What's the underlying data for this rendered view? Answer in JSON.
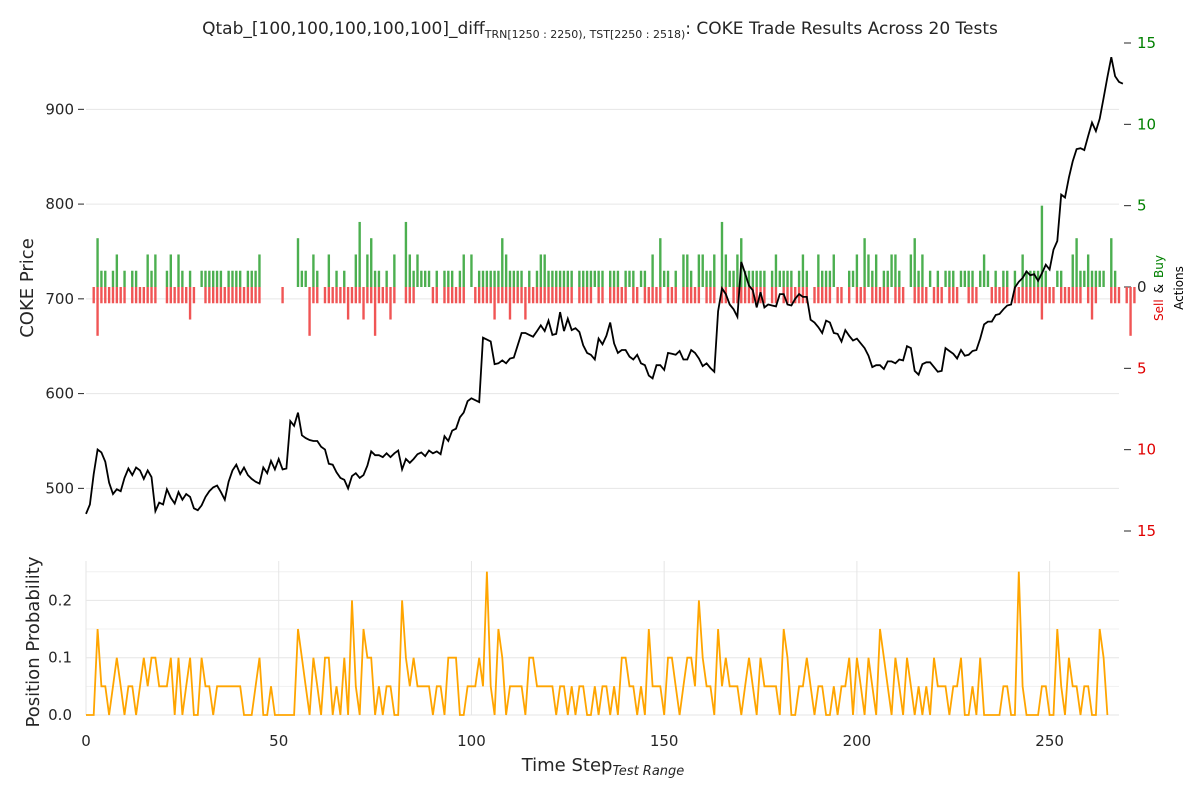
{
  "chart_data": [
    {
      "type": "line",
      "title": "Qtab_[100,100,100,100,100]_diff",
      "title_sub": "TRN[1250 : 2250), TST[2250 : 2518)",
      "title_suffix": ": COKE Trade Results Across 20 Tests",
      "ylabel": "COKE Price",
      "ylim": [
        455,
        970
      ],
      "xlim": [
        0,
        268
      ],
      "yticks": [
        500,
        600,
        700,
        800,
        900
      ],
      "grid": true,
      "price_color": "#000000",
      "series": [
        {
          "values": [
            473,
            483,
            515,
            541,
            538,
            528,
            506,
            494,
            499,
            497,
            511,
            521,
            514,
            522,
            519,
            510,
            519,
            512,
            476,
            485,
            483,
            499,
            490,
            484,
            496,
            488,
            494,
            491,
            479,
            477,
            482,
            491,
            497,
            501,
            503,
            496,
            488,
            507,
            519,
            525,
            515,
            522,
            514,
            510,
            507,
            505,
            522,
            516,
            529,
            520,
            531,
            520,
            521,
            571,
            566,
            580,
            556,
            553,
            551,
            550,
            550,
            544,
            541,
            526,
            525,
            517,
            511,
            509,
            500,
            513,
            516,
            511,
            514,
            524,
            539,
            535,
            535,
            533,
            537,
            533,
            537,
            540,
            520,
            531,
            527,
            531,
            536,
            538,
            534,
            540,
            537,
            539,
            536,
            555,
            550,
            561,
            563,
            575,
            580,
            592,
            595,
            593,
            591,
            659,
            657,
            655,
            631,
            632,
            635,
            632,
            637,
            638,
            651,
            664,
            664,
            662,
            660,
            666,
            672,
            666,
            677,
            662,
            663,
            686,
            666,
            679,
            667,
            669,
            665,
            651,
            643,
            641,
            636,
            658,
            652,
            661,
            675,
            653,
            643,
            646,
            646,
            639,
            636,
            641,
            632,
            630,
            619,
            616,
            630,
            630,
            625,
            643,
            642,
            641,
            645,
            636,
            636,
            646,
            643,
            637,
            629,
            632,
            627,
            623,
            687,
            711,
            705,
            694,
            689,
            681,
            739,
            727,
            714,
            709,
            691,
            707,
            691,
            694,
            693,
            692,
            705,
            705,
            694,
            693,
            700,
            705,
            702,
            702,
            678,
            675,
            670,
            664,
            677,
            675,
            664,
            663,
            655,
            667,
            661,
            656,
            658,
            653,
            648,
            640,
            628,
            630,
            630,
            626,
            634,
            634,
            632,
            636,
            635,
            650,
            648,
            624,
            620,
            631,
            633,
            633,
            628,
            623,
            624,
            648,
            645,
            642,
            637,
            646,
            640,
            641,
            645,
            646,
            658,
            673,
            676,
            676,
            683,
            684,
            689,
            693,
            694,
            712,
            718,
            722,
            729,
            725,
            726,
            719,
            727,
            736,
            731,
            752,
            761,
            810,
            807,
            828,
            845,
            858,
            859,
            857,
            872,
            886,
            877,
            890,
            912,
            934,
            955,
            935,
            929,
            927
          ]
        }
      ]
    },
    {
      "type": "bar",
      "ylabel_buy": "Buy",
      "ylabel_amp": "&",
      "ylabel_sell": "Sell",
      "ylabel_actions": "Actions",
      "ylim": [
        -15,
        15
      ],
      "yticks_labels": [
        "15",
        "10",
        "5",
        "0",
        "5",
        "10",
        "15"
      ],
      "yticks_values": [
        15,
        10,
        5,
        0,
        -5,
        -10,
        -15
      ],
      "buy_color": "#4caf50",
      "sell_color": "#f05555",
      "tick_color_buy": "#008000",
      "tick_color_sell": "#e00000",
      "series": [
        {
          "name": "Buy",
          "values": [
            0,
            0,
            0,
            3,
            1,
            1,
            0,
            1,
            2,
            0,
            1,
            0,
            1,
            1,
            0,
            0,
            2,
            1,
            2,
            0,
            0,
            1,
            2,
            0,
            2,
            1,
            0,
            1,
            0,
            0,
            1,
            1,
            1,
            1,
            1,
            1,
            0,
            1,
            1,
            1,
            1,
            0,
            1,
            1,
            1,
            2,
            0,
            0,
            0,
            0,
            0,
            0,
            0,
            0,
            0,
            3,
            1,
            1,
            0,
            2,
            1,
            0,
            0,
            2,
            0,
            1,
            0,
            1,
            0,
            0,
            2,
            4,
            0,
            2,
            3,
            1,
            1,
            0,
            1,
            0,
            2,
            0,
            0,
            4,
            2,
            1,
            2,
            1,
            1,
            1,
            0,
            1,
            0,
            1,
            1,
            1,
            0,
            1,
            2,
            0,
            2,
            0,
            1,
            1,
            1,
            1,
            1,
            1,
            3,
            2,
            1,
            1,
            1,
            1,
            0,
            1,
            0,
            1,
            2,
            2,
            1,
            1,
            1,
            1,
            1,
            1,
            1,
            0,
            1,
            1,
            1,
            1,
            1,
            1,
            1,
            0,
            1,
            1,
            1,
            0,
            1,
            1,
            1,
            0,
            1,
            1,
            0,
            2,
            0,
            3,
            1,
            1,
            0,
            1,
            0,
            2,
            2,
            1,
            0,
            2,
            2,
            1,
            1,
            2,
            0,
            4,
            2,
            1,
            1,
            2,
            3,
            1,
            1,
            1,
            1,
            1,
            1,
            0,
            1,
            2,
            1,
            1,
            1,
            1,
            0,
            1,
            2,
            1,
            0,
            0,
            2,
            1,
            1,
            1,
            2,
            0,
            0,
            0,
            1,
            1,
            2,
            0,
            3,
            2,
            1,
            2,
            0,
            1,
            1,
            2,
            2,
            1,
            0,
            0,
            2,
            3,
            1,
            2,
            0,
            1,
            0,
            1,
            0,
            1,
            1,
            1,
            0,
            1,
            1,
            1,
            1,
            0,
            1,
            2,
            1,
            0,
            1,
            0,
            1,
            1,
            0,
            1,
            0,
            2,
            1,
            1,
            1,
            1,
            5,
            1,
            0,
            0,
            1,
            1,
            0,
            0,
            2,
            3,
            1,
            1,
            2,
            1,
            1,
            1,
            1,
            0,
            3,
            1,
            0,
            0
          ]
        },
        {
          "name": "Sell",
          "values": [
            0,
            0,
            1,
            3,
            1,
            1,
            1,
            1,
            1,
            1,
            1,
            0,
            1,
            1,
            1,
            1,
            1,
            1,
            1,
            0,
            0,
            1,
            1,
            1,
            1,
            1,
            1,
            2,
            1,
            0,
            0,
            1,
            1,
            1,
            1,
            1,
            1,
            1,
            1,
            1,
            1,
            1,
            1,
            1,
            1,
            1,
            0,
            0,
            0,
            0,
            0,
            1,
            0,
            0,
            0,
            0,
            0,
            0,
            3,
            1,
            1,
            0,
            1,
            1,
            1,
            1,
            1,
            1,
            2,
            1,
            1,
            1,
            2,
            1,
            1,
            3,
            1,
            1,
            1,
            2,
            1,
            0,
            0,
            1,
            1,
            1,
            0,
            0,
            0,
            0,
            1,
            1,
            0,
            1,
            1,
            1,
            1,
            1,
            1,
            0,
            0,
            1,
            1,
            1,
            1,
            1,
            2,
            1,
            1,
            1,
            2,
            1,
            1,
            1,
            2,
            1,
            1,
            1,
            1,
            1,
            1,
            1,
            1,
            1,
            1,
            1,
            1,
            0,
            1,
            1,
            1,
            1,
            0,
            1,
            1,
            0,
            1,
            1,
            1,
            1,
            1,
            0,
            1,
            1,
            0,
            1,
            1,
            1,
            1,
            1,
            0,
            1,
            1,
            1,
            0,
            1,
            1,
            1,
            1,
            1,
            0,
            1,
            1,
            1,
            0,
            1,
            1,
            0,
            1,
            1,
            1,
            1,
            1,
            1,
            1,
            1,
            1,
            0,
            1,
            1,
            0,
            1,
            1,
            1,
            1,
            1,
            1,
            1,
            0,
            1,
            1,
            1,
            1,
            1,
            0,
            1,
            1,
            0,
            1,
            0,
            1,
            1,
            1,
            0,
            1,
            1,
            1,
            1,
            1,
            0,
            1,
            1,
            1,
            0,
            0,
            1,
            1,
            1,
            1,
            0,
            1,
            1,
            1,
            0,
            1,
            1,
            1,
            0,
            0,
            1,
            1,
            1,
            0,
            0,
            0,
            1,
            1,
            1,
            1,
            1,
            0,
            1,
            1,
            1,
            1,
            1,
            1,
            1,
            2,
            1,
            1,
            1,
            0,
            1,
            1,
            1,
            1,
            1,
            1,
            0,
            1,
            2,
            1,
            0,
            0,
            0,
            1,
            1,
            1,
            0,
            1,
            3,
            1,
            0,
            0,
            0
          ]
        }
      ]
    },
    {
      "type": "line",
      "ylabel": "Position Probability",
      "xlabel": "Time Step",
      "xlabel_sub": "Test Range",
      "ylim": [
        0,
        0.26
      ],
      "xlim": [
        0,
        268
      ],
      "yticks": [
        0.0,
        0.1,
        0.2
      ],
      "yticks_labels": [
        "0.0",
        "0.1",
        "0.2"
      ],
      "xticks": [
        0,
        50,
        100,
        150,
        200,
        250
      ],
      "grid": true,
      "line_color": "#ffa500",
      "series": [
        {
          "values": [
            0,
            0,
            0,
            0.15,
            0.05,
            0.05,
            0,
            0.05,
            0.1,
            0.05,
            0,
            0.05,
            0.05,
            0,
            0.05,
            0.1,
            0.05,
            0.1,
            0.1,
            0.05,
            0.05,
            0.05,
            0.1,
            0,
            0.1,
            0,
            0.05,
            0.1,
            0,
            0,
            0.1,
            0.05,
            0.05,
            0,
            0.05,
            0.05,
            0.05,
            0.05,
            0.05,
            0.05,
            0.05,
            0,
            0,
            0,
            0.05,
            0.1,
            0,
            0,
            0.05,
            0,
            0,
            0,
            0,
            0,
            0,
            0.15,
            0.1,
            0.05,
            0,
            0.1,
            0.05,
            0,
            0.1,
            0.1,
            0,
            0.05,
            0,
            0.1,
            0,
            0.2,
            0.05,
            0,
            0.15,
            0.1,
            0.1,
            0,
            0.05,
            0,
            0.05,
            0.05,
            0,
            0,
            0.2,
            0.1,
            0.05,
            0.1,
            0.05,
            0.05,
            0.05,
            0.05,
            0,
            0.05,
            0.05,
            0,
            0.1,
            0.1,
            0.1,
            0,
            0,
            0.05,
            0.05,
            0.05,
            0.1,
            0.05,
            0.25,
            0.05,
            0,
            0.15,
            0.1,
            0,
            0.05,
            0.05,
            0.05,
            0.05,
            0,
            0.1,
            0.1,
            0.05,
            0.05,
            0.05,
            0.05,
            0.05,
            0,
            0.05,
            0.05,
            0,
            0.05,
            0,
            0.05,
            0.05,
            0,
            0,
            0.05,
            0,
            0.05,
            0.05,
            0,
            0.05,
            0,
            0.1,
            0.1,
            0.05,
            0.05,
            0,
            0.05,
            0,
            0.15,
            0.05,
            0.05,
            0.05,
            0,
            0.1,
            0.1,
            0.05,
            0,
            0.05,
            0.1,
            0.1,
            0.05,
            0.2,
            0.1,
            0.05,
            0.05,
            0,
            0.15,
            0.05,
            0.1,
            0.05,
            0.05,
            0.05,
            0,
            0.05,
            0.1,
            0.05,
            0,
            0.1,
            0.05,
            0.05,
            0.05,
            0.05,
            0,
            0.15,
            0.1,
            0,
            0,
            0.05,
            0.05,
            0.1,
            0.05,
            0,
            0.05,
            0.05,
            0,
            0,
            0.05,
            0,
            0.05,
            0.05,
            0.1,
            0,
            0.1,
            0.05,
            0,
            0.1,
            0.05,
            0,
            0.15,
            0.1,
            0.05,
            0,
            0.1,
            0.05,
            0,
            0.1,
            0.05,
            0,
            0.05,
            0,
            0.05,
            0,
            0.1,
            0.05,
            0.05,
            0.05,
            0,
            0.05,
            0.05,
            0.1,
            0,
            0,
            0.05,
            0,
            0.1,
            0,
            0,
            0,
            0,
            0,
            0.05,
            0.05,
            0,
            0,
            0.25,
            0.05,
            0,
            0,
            0,
            0,
            0.05,
            0.05,
            0,
            0,
            0.15,
            0.05,
            0,
            0.1,
            0.05,
            0.05,
            0,
            0.05,
            0.05,
            0,
            0,
            0.15,
            0.1,
            0
          ]
        }
      ]
    }
  ]
}
